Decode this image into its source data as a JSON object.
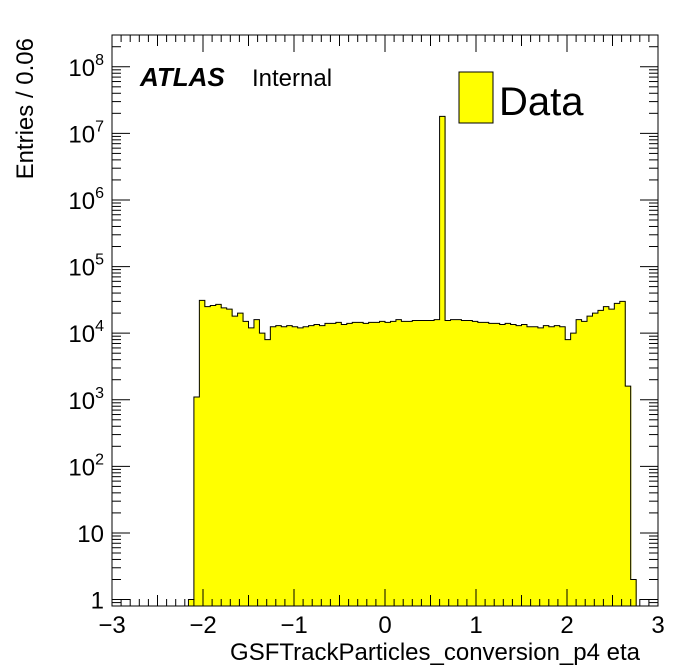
{
  "chart_data": {
    "type": "bar",
    "style": "histogram-step",
    "xlabel": "GSFTrackParticles_conversion_p4 eta",
    "ylabel": "Entries / 0.06",
    "xlim": [
      -3,
      3
    ],
    "ylim": [
      0.8,
      300000000
    ],
    "yscale": "log",
    "bin_width": 0.06,
    "x_start": -3,
    "x_tick_labels": [
      "−3",
      "−2",
      "−1",
      "0",
      "1",
      "2",
      "3"
    ],
    "y_tick_labels": [
      {
        "value": 1,
        "base": "1",
        "exp": ""
      },
      {
        "value": 10,
        "base": "10",
        "exp": ""
      },
      {
        "value": 100,
        "base": "10",
        "exp": "2"
      },
      {
        "value": 1000,
        "base": "10",
        "exp": "3"
      },
      {
        "value": 10000,
        "base": "10",
        "exp": "4"
      },
      {
        "value": 100000,
        "base": "10",
        "exp": "5"
      },
      {
        "value": 1000000,
        "base": "10",
        "exp": "6"
      },
      {
        "value": 10000000,
        "base": "10",
        "exp": "7"
      },
      {
        "value": 100000000,
        "base": "10",
        "exp": "8"
      }
    ],
    "series": [
      {
        "name": "Data",
        "color": "#ffff00",
        "values": [
          0,
          0,
          0,
          0,
          0,
          0,
          0,
          0,
          0,
          0,
          0,
          0,
          0,
          0,
          1,
          1100,
          31000,
          25000,
          26000,
          27000,
          24000,
          23000,
          18000,
          20000,
          15000,
          12000,
          16000,
          10000,
          8000,
          12500,
          13000,
          12500,
          13000,
          12500,
          12000,
          12500,
          13000,
          13500,
          13000,
          14000,
          14000,
          14500,
          13500,
          14000,
          14500,
          14500,
          14000,
          14500,
          14500,
          15000,
          14500,
          15000,
          16000,
          15000,
          15000,
          15500,
          15500,
          15500,
          15500,
          16000,
          18000000,
          15500,
          16000,
          16000,
          15500,
          15500,
          15000,
          14500,
          14500,
          14000,
          14000,
          13500,
          14000,
          13500,
          13000,
          13500,
          12500,
          12500,
          12000,
          13000,
          12500,
          13000,
          12500,
          8000,
          10000,
          16000,
          15000,
          18000,
          20000,
          22000,
          25000,
          23000,
          28000,
          30000,
          1600,
          2,
          0,
          0,
          0,
          0,
          0,
          0,
          0,
          0,
          0,
          0,
          0,
          0
        ]
      }
    ],
    "legend": {
      "position": "top-right",
      "entries": [
        "Data"
      ]
    }
  },
  "annotations": {
    "experiment": "ATLAS",
    "status": "Internal"
  }
}
